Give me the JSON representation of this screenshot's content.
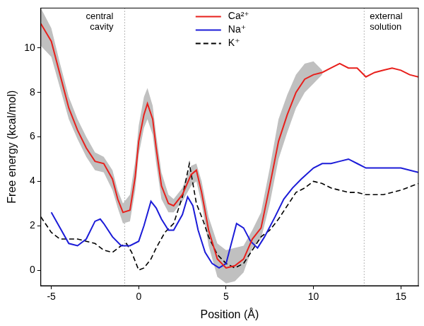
{
  "chart_data": {
    "type": "line",
    "x_label": "Position (Å)",
    "y_label": "Free energy (kcal/mol)",
    "xlim": [
      -5.6,
      16
    ],
    "xticks": [
      -5,
      0,
      5,
      10,
      15
    ],
    "ylim": [
      -0.7,
      11.8
    ],
    "yticks": [
      0,
      2,
      4,
      6,
      8,
      10
    ],
    "grid": false,
    "legend": "top",
    "annotations": [
      {
        "text": "central cavity",
        "x": -0.8
      },
      {
        "text": "external solution",
        "x": 12.9
      }
    ],
    "series": [
      {
        "name": "Ca²⁺",
        "color": "#e8201c",
        "line_style": "solid",
        "band_color": "#c0c0c0",
        "x": [
          -5.6,
          -5,
          -4.5,
          -4,
          -3.5,
          -3,
          -2.5,
          -2,
          -1.5,
          -1.2,
          -0.9,
          -0.5,
          -0.2,
          0,
          0.3,
          0.5,
          0.8,
          1,
          1.3,
          1.7,
          2,
          2.5,
          3,
          3.3,
          3.6,
          4,
          4.5,
          5,
          5.5,
          6,
          6.5,
          7,
          7.5,
          8,
          8.5,
          9,
          9.5,
          10,
          10.5,
          11,
          11.5,
          12,
          12.5,
          13,
          13.5,
          14,
          14.5,
          15,
          15.5,
          16
        ],
        "values": [
          11.1,
          10.3,
          8.8,
          7.3,
          6.3,
          5.5,
          4.9,
          4.8,
          4.1,
          3.2,
          2.6,
          2.7,
          4.2,
          5.8,
          7.0,
          7.5,
          6.8,
          5.5,
          3.8,
          3.0,
          2.9,
          3.4,
          4.3,
          4.5,
          3.5,
          1.8,
          0.5,
          0.1,
          0.2,
          0.5,
          1.4,
          1.9,
          3.8,
          5.8,
          7.0,
          8.0,
          8.6,
          8.8,
          8.9,
          9.1,
          9.3,
          9.1,
          9.1,
          8.7,
          8.9,
          9.0,
          9.1,
          9.0,
          8.8,
          8.7
        ],
        "lower": [
          10.1,
          9.6,
          8.2,
          6.8,
          5.9,
          5.1,
          4.5,
          4.4,
          3.6,
          2.8,
          2.1,
          2.2,
          3.6,
          5.2,
          6.4,
          6.8,
          6.1,
          4.8,
          3.2,
          2.6,
          2.6,
          3.1,
          3.8,
          4.0,
          3.0,
          1.1,
          -0.3,
          -0.6,
          -0.5,
          -0.1,
          1.0,
          1.4,
          3.0,
          5.0,
          6.2,
          7.3,
          8.0,
          8.4,
          8.8,
          null,
          null,
          null,
          null,
          null,
          null,
          null,
          null,
          null,
          null,
          null
        ],
        "upper": [
          11.8,
          10.9,
          9.3,
          7.8,
          6.8,
          6.0,
          5.3,
          5.1,
          4.5,
          3.6,
          3.0,
          3.4,
          4.9,
          6.5,
          7.8,
          8.2,
          7.4,
          6.1,
          4.4,
          3.4,
          3.2,
          3.7,
          4.7,
          4.8,
          4.0,
          2.4,
          1.2,
          0.9,
          1.0,
          1.1,
          1.8,
          2.6,
          4.6,
          6.8,
          7.9,
          8.8,
          9.3,
          9.4,
          9.0,
          null,
          null,
          null,
          null,
          null,
          null,
          null,
          null,
          null,
          null,
          null
        ]
      },
      {
        "name": "Na⁺",
        "color": "#1c1cd8",
        "line_style": "solid",
        "x": [
          -5,
          -4.5,
          -4,
          -3.5,
          -3,
          -2.5,
          -2.2,
          -2,
          -1.5,
          -1,
          -0.5,
          0,
          0.3,
          0.7,
          1,
          1.3,
          1.7,
          2,
          2.5,
          2.8,
          3.1,
          3.4,
          3.8,
          4.2,
          4.6,
          5,
          5.3,
          5.6,
          6,
          6.4,
          6.8,
          7.2,
          7.8,
          8.3,
          8.8,
          9.3,
          10,
          10.5,
          11,
          11.5,
          12,
          12.5,
          13,
          13.5,
          14,
          15,
          16
        ],
        "values": [
          2.6,
          1.9,
          1.2,
          1.1,
          1.4,
          2.2,
          2.3,
          2.1,
          1.5,
          1.1,
          1.1,
          1.3,
          2.0,
          3.1,
          2.8,
          2.3,
          1.8,
          1.8,
          2.5,
          3.3,
          2.9,
          1.8,
          0.8,
          0.3,
          0.1,
          0.3,
          1.2,
          2.1,
          1.9,
          1.3,
          1.0,
          1.5,
          2.4,
          3.2,
          3.7,
          4.1,
          4.6,
          4.8,
          4.8,
          4.9,
          5.0,
          4.8,
          4.6,
          4.6,
          4.6,
          4.6,
          4.4
        ]
      },
      {
        "name": "K⁺",
        "color": "#000000",
        "line_style": "dashed",
        "x": [
          -5.6,
          -5,
          -4.5,
          -4,
          -3.5,
          -3,
          -2.5,
          -2,
          -1.5,
          -1,
          -0.7,
          -0.4,
          0,
          0.3,
          0.7,
          1,
          1.5,
          2,
          2.5,
          2.9,
          3.3,
          3.7,
          4,
          4.5,
          5,
          5.5,
          6,
          6.5,
          7,
          7.5,
          8,
          8.5,
          9,
          9.5,
          10,
          10.5,
          11,
          12,
          12.5,
          13,
          14,
          15,
          16
        ],
        "values": [
          2.4,
          1.7,
          1.4,
          1.4,
          1.4,
          1.3,
          1.2,
          0.9,
          0.8,
          1.1,
          1.2,
          0.8,
          0.0,
          0.1,
          0.5,
          1.0,
          1.7,
          2.1,
          3.3,
          4.8,
          3.0,
          2.2,
          1.5,
          0.7,
          0.3,
          0.1,
          0.3,
          0.9,
          1.5,
          1.8,
          2.3,
          2.9,
          3.5,
          3.7,
          4.0,
          3.9,
          3.7,
          3.5,
          3.5,
          3.4,
          3.4,
          3.6,
          3.9
        ]
      }
    ]
  }
}
